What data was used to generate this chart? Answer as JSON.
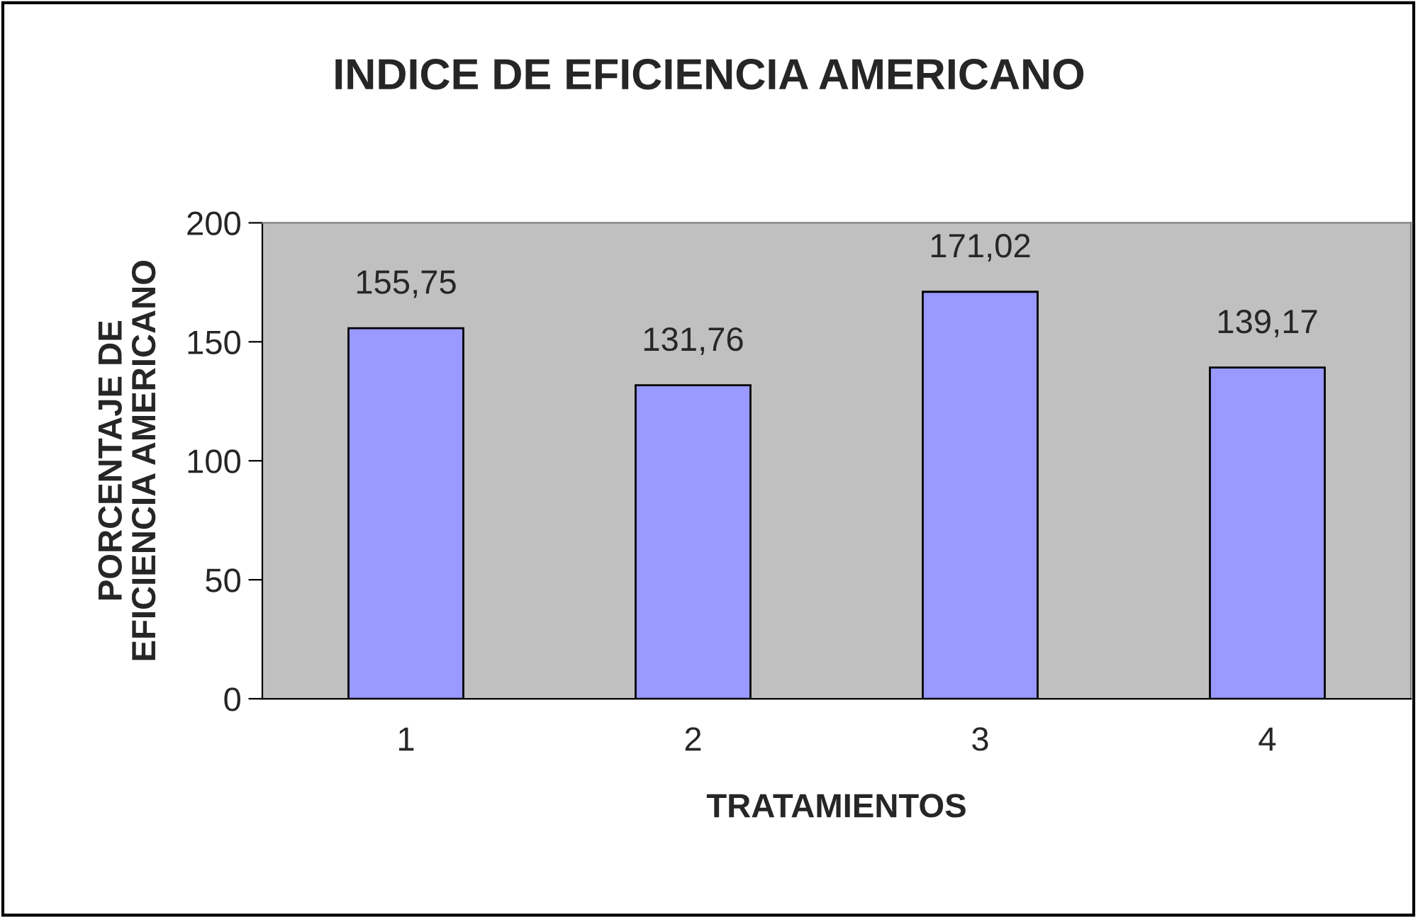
{
  "chart_data": {
    "type": "bar",
    "title": "INDICE DE EFICIENCIA AMERICANO",
    "xlabel": "TRATAMIENTOS",
    "ylabel": "PORCENTAJE DE\nEFICIENCIA AMERICANO",
    "categories": [
      "1",
      "2",
      "3",
      "4"
    ],
    "values": [
      155.75,
      131.76,
      171.02,
      139.17
    ],
    "value_labels": [
      "155,75",
      "131,76",
      "171,02",
      "139,17"
    ],
    "color": "#9999ff",
    "ylim": [
      0,
      200
    ],
    "yticks": [
      0,
      50,
      100,
      150,
      200
    ],
    "grid": false
  }
}
